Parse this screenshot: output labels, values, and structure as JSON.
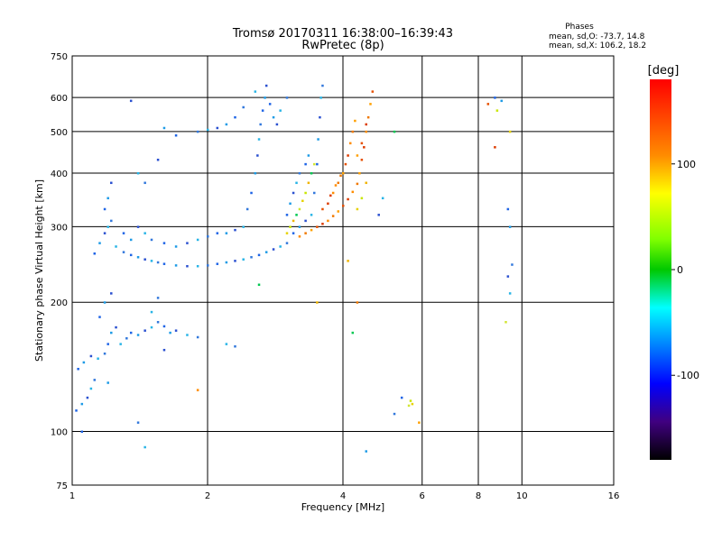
{
  "header": {
    "title": "Tromsø 20170311 16:38:00–16:39:43",
    "subtitle": "RwPretec (8p)",
    "stats_title": "Phases",
    "stats_line1": "mean, sd,O: -73.7, 14.8",
    "stats_line2": "mean, sd,X: 106.2, 18.2"
  },
  "chart_data": {
    "type": "scatter",
    "xlabel": "Frequency [MHz]",
    "ylabel": "Stationary phase Virtual Height [km]",
    "x_scale": "log",
    "y_scale": "log",
    "xlim": [
      1,
      16
    ],
    "ylim": [
      75,
      750
    ],
    "x_ticks": [
      1,
      2,
      4,
      6,
      8,
      10,
      16
    ],
    "y_ticks": [
      75,
      100,
      200,
      300,
      400,
      500,
      600,
      750
    ],
    "grid": true,
    "colorbar": {
      "label": "[deg]",
      "range": [
        -180,
        180
      ],
      "ticks": [
        -100,
        0,
        100
      ]
    },
    "series": [
      {
        "hue": "blue-cyan",
        "points": [
          [
            1.02,
            112
          ],
          [
            1.05,
            116
          ],
          [
            1.08,
            120
          ],
          [
            1.1,
            126
          ],
          [
            1.12,
            132
          ],
          [
            1.03,
            140
          ],
          [
            1.06,
            145
          ],
          [
            1.1,
            150
          ],
          [
            1.14,
            148
          ],
          [
            1.18,
            152
          ],
          [
            1.2,
            160
          ],
          [
            1.22,
            170
          ],
          [
            1.25,
            175
          ],
          [
            1.28,
            160
          ],
          [
            1.32,
            165
          ],
          [
            1.35,
            170
          ],
          [
            1.4,
            168
          ],
          [
            1.45,
            172
          ],
          [
            1.5,
            175
          ],
          [
            1.55,
            180
          ],
          [
            1.6,
            176
          ],
          [
            1.65,
            170
          ],
          [
            1.7,
            172
          ],
          [
            1.8,
            168
          ],
          [
            1.9,
            166
          ],
          [
            1.15,
            185
          ],
          [
            1.18,
            200
          ],
          [
            1.22,
            210
          ],
          [
            1.5,
            190
          ],
          [
            1.55,
            205
          ],
          [
            1.12,
            260
          ],
          [
            1.15,
            275
          ],
          [
            1.18,
            290
          ],
          [
            1.2,
            300
          ],
          [
            1.22,
            310
          ],
          [
            1.18,
            330
          ],
          [
            1.2,
            350
          ],
          [
            1.22,
            380
          ],
          [
            1.25,
            270
          ],
          [
            1.3,
            262
          ],
          [
            1.35,
            258
          ],
          [
            1.4,
            255
          ],
          [
            1.45,
            252
          ],
          [
            1.5,
            250
          ],
          [
            1.55,
            248
          ],
          [
            1.6,
            246
          ],
          [
            1.7,
            244
          ],
          [
            1.8,
            243
          ],
          [
            1.9,
            243
          ],
          [
            2.0,
            244
          ],
          [
            2.1,
            246
          ],
          [
            2.2,
            248
          ],
          [
            2.3,
            250
          ],
          [
            2.4,
            252
          ],
          [
            2.5,
            255
          ],
          [
            2.6,
            258
          ],
          [
            2.7,
            262
          ],
          [
            2.8,
            266
          ],
          [
            2.9,
            270
          ],
          [
            3.0,
            275
          ],
          [
            1.3,
            290
          ],
          [
            1.35,
            280
          ],
          [
            1.4,
            300
          ],
          [
            1.45,
            290
          ],
          [
            1.5,
            280
          ],
          [
            1.6,
            275
          ],
          [
            1.7,
            270
          ],
          [
            1.8,
            275
          ],
          [
            1.9,
            280
          ],
          [
            2.0,
            285
          ],
          [
            2.1,
            290
          ],
          [
            2.2,
            290
          ],
          [
            2.3,
            295
          ],
          [
            2.4,
            300
          ],
          [
            2.45,
            330
          ],
          [
            2.5,
            360
          ],
          [
            2.55,
            400
          ],
          [
            2.58,
            440
          ],
          [
            2.6,
            480
          ],
          [
            2.62,
            520
          ],
          [
            2.65,
            560
          ],
          [
            2.68,
            600
          ],
          [
            2.7,
            640
          ],
          [
            2.55,
            620
          ],
          [
            2.4,
            570
          ],
          [
            2.3,
            540
          ],
          [
            2.2,
            520
          ],
          [
            2.1,
            510
          ],
          [
            2.0,
            505
          ],
          [
            1.9,
            500
          ],
          [
            1.7,
            490
          ],
          [
            1.6,
            510
          ],
          [
            1.55,
            430
          ],
          [
            1.4,
            400
          ],
          [
            1.45,
            380
          ],
          [
            2.75,
            580
          ],
          [
            2.8,
            540
          ],
          [
            2.85,
            520
          ],
          [
            2.9,
            560
          ],
          [
            3.0,
            600
          ],
          [
            3.1,
            290
          ],
          [
            3.2,
            300
          ],
          [
            3.3,
            310
          ],
          [
            3.4,
            320
          ],
          [
            3.45,
            360
          ],
          [
            3.5,
            420
          ],
          [
            3.52,
            480
          ],
          [
            3.55,
            540
          ],
          [
            3.57,
            600
          ],
          [
            3.6,
            640
          ],
          [
            3.0,
            320
          ],
          [
            3.05,
            340
          ],
          [
            3.1,
            360
          ],
          [
            3.15,
            380
          ],
          [
            3.2,
            400
          ],
          [
            3.3,
            420
          ],
          [
            3.35,
            440
          ],
          [
            1.35,
            590
          ],
          [
            1.45,
            92
          ],
          [
            1.4,
            105
          ],
          [
            1.05,
            100
          ],
          [
            1.2,
            130
          ],
          [
            1.6,
            155
          ],
          [
            2.2,
            160
          ],
          [
            2.3,
            158
          ],
          [
            8.7,
            600
          ],
          [
            9.0,
            590
          ],
          [
            9.3,
            230
          ],
          [
            9.4,
            210
          ],
          [
            9.5,
            245
          ],
          [
            9.3,
            330
          ],
          [
            9.4,
            300
          ],
          [
            4.8,
            320
          ],
          [
            4.9,
            350
          ],
          [
            5.2,
            110
          ],
          [
            5.4,
            120
          ],
          [
            4.5,
            90
          ]
        ]
      },
      {
        "hue": "green-yellow",
        "points": [
          [
            3.0,
            290
          ],
          [
            3.05,
            300
          ],
          [
            3.1,
            310
          ],
          [
            3.15,
            320
          ],
          [
            3.2,
            330
          ],
          [
            3.25,
            345
          ],
          [
            3.3,
            360
          ],
          [
            3.35,
            380
          ],
          [
            3.4,
            400
          ],
          [
            3.45,
            420
          ],
          [
            4.3,
            330
          ],
          [
            4.4,
            350
          ],
          [
            4.5,
            380
          ],
          [
            5.2,
            500
          ],
          [
            5.6,
            115
          ],
          [
            5.7,
            116
          ],
          [
            5.65,
            118
          ],
          [
            4.1,
            250
          ],
          [
            4.2,
            170
          ],
          [
            9.2,
            180
          ],
          [
            9.4,
            500
          ],
          [
            8.8,
            560
          ],
          [
            3.5,
            200
          ],
          [
            2.6,
            220
          ]
        ]
      },
      {
        "hue": "orange-red",
        "points": [
          [
            3.2,
            285
          ],
          [
            3.3,
            290
          ],
          [
            3.4,
            295
          ],
          [
            3.5,
            300
          ],
          [
            3.6,
            305
          ],
          [
            3.7,
            310
          ],
          [
            3.8,
            318
          ],
          [
            3.9,
            326
          ],
          [
            4.0,
            336
          ],
          [
            4.1,
            348
          ],
          [
            4.2,
            362
          ],
          [
            4.3,
            378
          ],
          [
            4.35,
            400
          ],
          [
            4.4,
            430
          ],
          [
            4.45,
            460
          ],
          [
            4.5,
            500
          ],
          [
            4.55,
            540
          ],
          [
            4.6,
            580
          ],
          [
            4.65,
            620
          ],
          [
            3.7,
            340
          ],
          [
            3.8,
            360
          ],
          [
            3.9,
            380
          ],
          [
            4.0,
            400
          ],
          [
            4.05,
            420
          ],
          [
            4.1,
            440
          ],
          [
            4.15,
            470
          ],
          [
            4.2,
            500
          ],
          [
            4.25,
            530
          ],
          [
            3.6,
            330
          ],
          [
            3.75,
            355
          ],
          [
            3.85,
            375
          ],
          [
            3.95,
            395
          ],
          [
            4.3,
            440
          ],
          [
            4.4,
            470
          ],
          [
            4.5,
            520
          ],
          [
            1.9,
            125
          ],
          [
            4.3,
            200
          ],
          [
            5.9,
            105
          ],
          [
            8.4,
            580
          ],
          [
            8.7,
            460
          ]
        ]
      }
    ]
  }
}
